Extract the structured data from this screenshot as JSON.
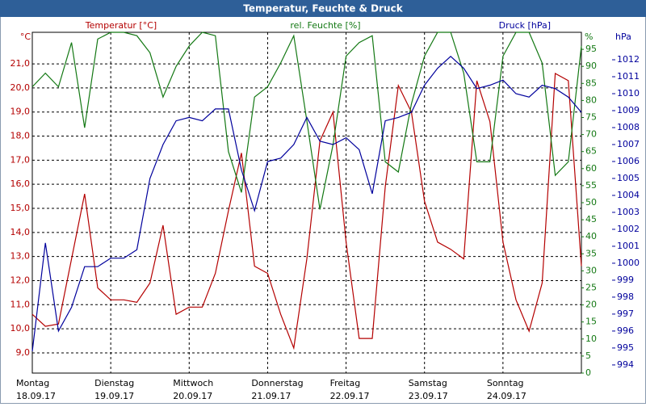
{
  "chart_data": {
    "type": "line",
    "title": "Temperatur, Feuchte & Druck",
    "axis_titles": {
      "y": "°C",
      "y2": "%",
      "y3": "hPa"
    },
    "x": [
      0,
      4,
      8,
      12,
      16,
      20,
      24,
      28,
      32,
      36,
      40,
      44,
      48,
      52,
      56,
      60,
      64,
      68,
      72,
      76,
      80,
      84,
      88,
      92,
      96,
      100,
      104,
      108,
      112,
      116,
      120,
      124,
      128,
      132,
      136,
      140,
      144,
      148,
      152,
      156,
      160,
      164,
      168
    ],
    "xlim": [
      0,
      168
    ],
    "xticks": [
      {
        "value": 0,
        "label": "Montag",
        "date": "18.09.17"
      },
      {
        "value": 24,
        "label": "Dienstag",
        "date": "19.09.17"
      },
      {
        "value": 48,
        "label": "Mittwoch",
        "date": "20.09.17"
      },
      {
        "value": 72,
        "label": "Donnerstag",
        "date": "21.09.17"
      },
      {
        "value": 96,
        "label": "Freitag",
        "date": "22.09.17"
      },
      {
        "value": 120,
        "label": "Samstag",
        "date": "23.09.17"
      },
      {
        "value": 144,
        "label": "Sonntag",
        "date": "24.09.17"
      }
    ],
    "ylim": [
      8.16,
      22.31
    ],
    "yticks": [
      {
        "value": 9,
        "label": "9,0"
      },
      {
        "value": 10,
        "label": "10,0"
      },
      {
        "value": 11,
        "label": "11,0"
      },
      {
        "value": 12,
        "label": "12,0"
      },
      {
        "value": 13,
        "label": "13,0"
      },
      {
        "value": 14,
        "label": "14,0"
      },
      {
        "value": 15,
        "label": "15,0"
      },
      {
        "value": 16,
        "label": "16,0"
      },
      {
        "value": 17,
        "label": "17,0"
      },
      {
        "value": 18,
        "label": "18,0"
      },
      {
        "value": 19,
        "label": "19,0"
      },
      {
        "value": 20,
        "label": "20,0"
      },
      {
        "value": 21,
        "label": "21,0"
      }
    ],
    "y2lim": [
      0,
      100
    ],
    "y2ticks": [
      0,
      5,
      10,
      15,
      20,
      25,
      30,
      35,
      40,
      45,
      50,
      55,
      60,
      65,
      70,
      75,
      80,
      85,
      90,
      95
    ],
    "y3lim": [
      993.52,
      1013.62
    ],
    "y3ticks": [
      994,
      995,
      996,
      997,
      998,
      999,
      1000,
      1001,
      1002,
      1003,
      1004,
      1005,
      1006,
      1007,
      1008,
      1009,
      1010,
      1011,
      1012
    ],
    "grid": true,
    "series": [
      {
        "name": "Temperatur [°C]",
        "color": "#b40000",
        "axis": "y",
        "values": [
          10.6,
          10.1,
          10.2,
          12.9,
          15.6,
          11.7,
          11.2,
          11.2,
          11.1,
          11.9,
          14.3,
          10.6,
          10.9,
          10.9,
          12.3,
          14.9,
          17.3,
          12.6,
          12.3,
          10.6,
          9.2,
          12.9,
          17.8,
          19.0,
          13.6,
          9.6,
          9.6,
          15.9,
          20.1,
          19.0,
          15.3,
          13.6,
          13.3,
          12.9,
          20.3,
          18.6,
          13.6,
          11.2,
          9.9,
          11.9,
          20.6,
          20.3,
          12.6
        ]
      },
      {
        "name": "rel. Feuchte [%]",
        "color": "#137813",
        "axis": "y2",
        "values": [
          84,
          88,
          84,
          97,
          72,
          98,
          100,
          100,
          99,
          94,
          81,
          90,
          96,
          100,
          99,
          65,
          53,
          81,
          84,
          91,
          99,
          74,
          48,
          67,
          93,
          97,
          99,
          62,
          59,
          79,
          93,
          100,
          100,
          88,
          62,
          62,
          93,
          100,
          100,
          91,
          58,
          62,
          96
        ]
      },
      {
        "name": "Druck [hPa]",
        "color": "#00009c",
        "axis": "y3",
        "values": [
          994.8,
          1001.2,
          996.0,
          997.4,
          999.8,
          999.8,
          1000.3,
          1000.3,
          1000.8,
          1005.0,
          1007.0,
          1008.4,
          1008.6,
          1008.4,
          1009.1,
          1009.1,
          1005.5,
          1003.1,
          1006.0,
          1006.2,
          1007.0,
          1008.6,
          1007.2,
          1007.0,
          1007.4,
          1006.7,
          1004.1,
          1008.4,
          1008.6,
          1008.9,
          1010.5,
          1011.5,
          1012.2,
          1011.5,
          1010.3,
          1010.5,
          1010.8,
          1010.0,
          1009.8,
          1010.5,
          1010.3,
          1009.8,
          1008.9
        ]
      }
    ]
  }
}
